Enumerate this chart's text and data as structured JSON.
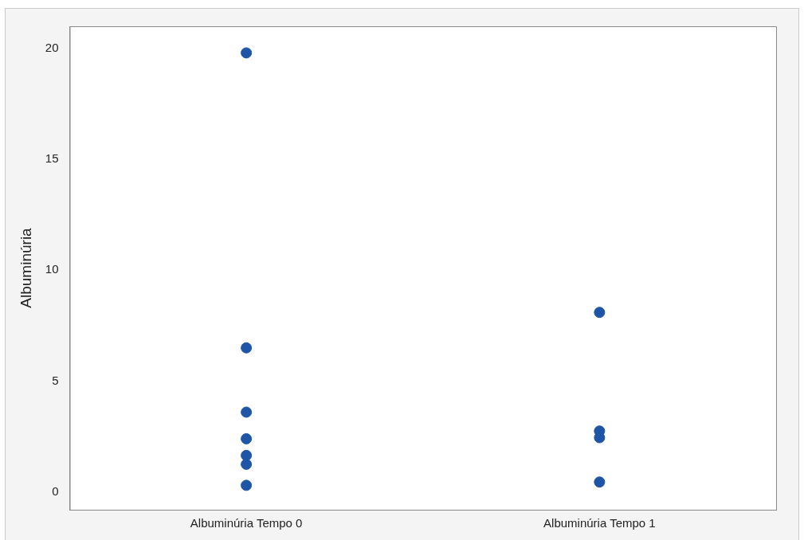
{
  "chart_data": {
    "type": "scatter",
    "ylabel": "Albuminúria",
    "categories": [
      "Albuminúria Tempo 0",
      "Albuminúria Tempo 1"
    ],
    "series": [
      {
        "color": "#1f55a6",
        "x": [
          "Albuminúria Tempo 0",
          "Albuminúria Tempo 0",
          "Albuminúria Tempo 0",
          "Albuminúria Tempo 0",
          "Albuminúria Tempo 0",
          "Albuminúria Tempo 0",
          "Albuminúria Tempo 0",
          "Albuminúria Tempo 1",
          "Albuminúria Tempo 1",
          "Albuminúria Tempo 1",
          "Albuminúria Tempo 1"
        ],
        "values": [
          19.8,
          6.5,
          3.6,
          2.4,
          1.65,
          1.25,
          0.3,
          8.1,
          2.75,
          2.45,
          0.45
        ]
      }
    ],
    "ylim": [
      -0.8,
      21
    ],
    "yticks": [
      0,
      5,
      10,
      15,
      20
    ],
    "grid": false,
    "legend": false,
    "marker": "circle"
  }
}
